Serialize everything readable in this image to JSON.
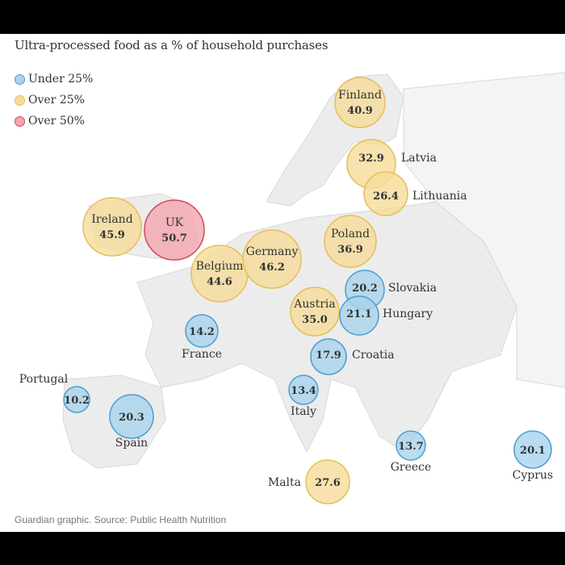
{
  "title": "Ultra-processed food as a % of household purchases",
  "legend": [
    {
      "label": "Under 25%",
      "category": "under25"
    },
    {
      "label": "Over 25%",
      "category": "over25"
    },
    {
      "label": "Over 50%",
      "category": "over50"
    }
  ],
  "colors": {
    "under25": {
      "fill": "#a9d3ec",
      "stroke": "#4a9fd0"
    },
    "over25": {
      "fill": "#f6dc9a",
      "stroke": "#e6be58"
    },
    "over50": {
      "fill": "#f2a6ae",
      "stroke": "#d5495b"
    }
  },
  "countries": [
    {
      "name": "Finland",
      "value": "40.9",
      "category": "over25",
      "label_pos": "inside"
    },
    {
      "name": "Latvia",
      "value": "32.9",
      "category": "over25",
      "label_pos": "right"
    },
    {
      "name": "Lithuania",
      "value": "26.4",
      "category": "over25",
      "label_pos": "right"
    },
    {
      "name": "Ireland",
      "value": "45.9",
      "category": "over25",
      "label_pos": "inside"
    },
    {
      "name": "UK",
      "value": "50.7",
      "category": "over50",
      "label_pos": "inside"
    },
    {
      "name": "Poland",
      "value": "36.9",
      "category": "over25",
      "label_pos": "inside"
    },
    {
      "name": "Germany",
      "value": "46.2",
      "category": "over25",
      "label_pos": "inside"
    },
    {
      "name": "Belgium",
      "value": "44.6",
      "category": "over25",
      "label_pos": "inside"
    },
    {
      "name": "Austria",
      "value": "35.0",
      "category": "over25",
      "label_pos": "inside"
    },
    {
      "name": "Slovakia",
      "value": "20.2",
      "category": "under25",
      "label_pos": "right"
    },
    {
      "name": "Hungary",
      "value": "21.1",
      "category": "under25",
      "label_pos": "right"
    },
    {
      "name": "France",
      "value": "14.2",
      "category": "under25",
      "label_pos": "below"
    },
    {
      "name": "Croatia",
      "value": "17.9",
      "category": "under25",
      "label_pos": "right"
    },
    {
      "name": "Portugal",
      "value": "10.2",
      "category": "under25",
      "label_pos": "above-left"
    },
    {
      "name": "Spain",
      "value": "20.3",
      "category": "under25",
      "label_pos": "below"
    },
    {
      "name": "Italy",
      "value": "13.4",
      "category": "under25",
      "label_pos": "below"
    },
    {
      "name": "Greece",
      "value": "13.7",
      "category": "under25",
      "label_pos": "below"
    },
    {
      "name": "Cyprus",
      "value": "20.1",
      "category": "under25",
      "label_pos": "below"
    },
    {
      "name": "Malta",
      "value": "27.6",
      "category": "over25",
      "label_pos": "left"
    }
  ],
  "footer": "Guardian graphic. Source: Public Health Nutrition"
}
